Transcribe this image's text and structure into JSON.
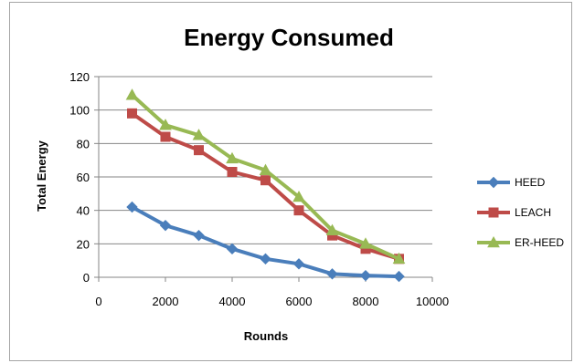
{
  "chart_data": {
    "type": "line",
    "title": "Energy Consumed",
    "xlabel": "Rounds",
    "ylabel": "Total Energy",
    "xlim": [
      0,
      10000
    ],
    "ylim": [
      0,
      120
    ],
    "x_ticks": [
      0,
      2000,
      4000,
      6000,
      8000,
      10000
    ],
    "y_ticks": [
      0,
      20,
      40,
      60,
      80,
      100,
      120
    ],
    "grid": "horizontal",
    "legend_position": "right",
    "x": [
      1000,
      2000,
      3000,
      4000,
      5000,
      6000,
      7000,
      8000,
      9000
    ],
    "series": [
      {
        "name": "HEED",
        "color": "#4a7ebb",
        "marker": "diamond",
        "values": [
          42,
          31,
          25,
          17,
          11,
          8,
          2,
          1,
          0.5
        ]
      },
      {
        "name": "LEACH",
        "color": "#be4b48",
        "marker": "square",
        "values": [
          98,
          84,
          76,
          63,
          58,
          40,
          25,
          17,
          11
        ]
      },
      {
        "name": "ER-HEED",
        "color": "#98b954",
        "marker": "triangle",
        "values": [
          109,
          91,
          85,
          71,
          64,
          48,
          28,
          20,
          11
        ]
      }
    ]
  }
}
